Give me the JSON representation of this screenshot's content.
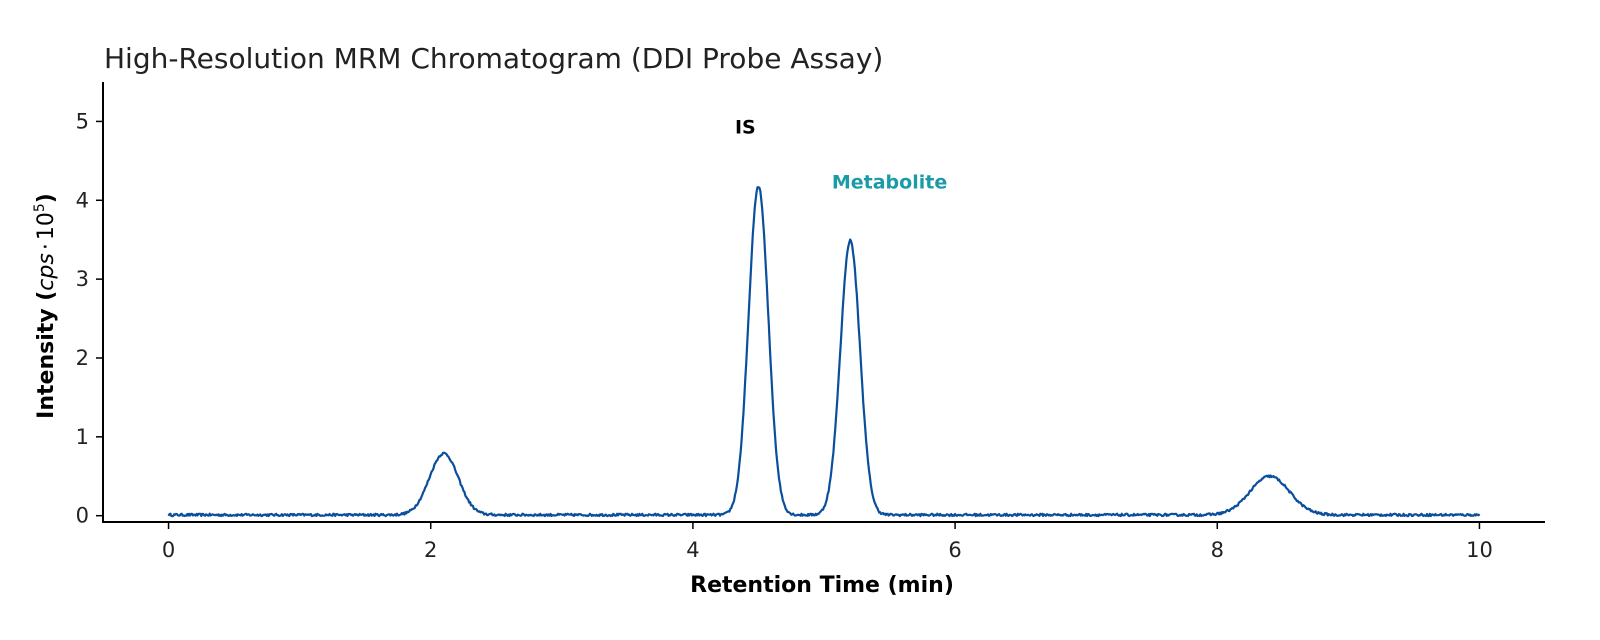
{
  "chart_data": {
    "type": "line",
    "title": "High-Resolution MRM Chromatogram (DDI Probe Assay)",
    "xlabel": "Retention Time (min)",
    "ylabel": {
      "prefix": "Intensity (",
      "var": "cps",
      "dot": "·",
      "base": "10",
      "exp": "5",
      "suffix": ")"
    },
    "xlim": [
      -0.5,
      10.5
    ],
    "ylim": [
      -0.08,
      5.5
    ],
    "xticks": [
      0,
      2,
      4,
      6,
      8,
      10
    ],
    "yticks": [
      0,
      1,
      2,
      3,
      4,
      5
    ],
    "grid": false,
    "line_color": "#0b4f9c",
    "x_range": [
      0,
      10
    ],
    "baseline": 0.01,
    "peaks": [
      {
        "rt": 2.1,
        "height": 0.78,
        "width": 0.11
      },
      {
        "rt": 4.5,
        "height": 4.17,
        "width": 0.075
      },
      {
        "rt": 5.2,
        "height": 3.48,
        "width": 0.075
      },
      {
        "rt": 8.4,
        "height": 0.49,
        "width": 0.15
      }
    ],
    "annotations": [
      {
        "text": "IS",
        "x": 4.4,
        "y": 4.85,
        "color": "#000000"
      },
      {
        "text": "Metabolite",
        "x": 5.5,
        "y": 4.15,
        "color": "#1a9ba6"
      }
    ]
  }
}
